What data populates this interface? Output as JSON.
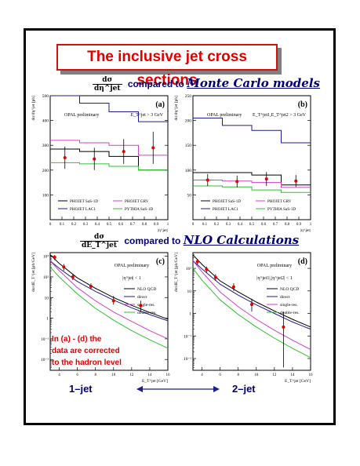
{
  "title": "The inclusive jet cross sections",
  "section_top": {
    "numerator": "dσ",
    "denominator": "dη^jet",
    "connector": "compared to",
    "emphasis": "Monte Carlo models"
  },
  "section_bottom": {
    "numerator": "dσ",
    "denominator": "dE_T^jet",
    "connector": "compared to",
    "emphasis": "NLO Calculations"
  },
  "note_lines": [
    "In (a) - (d) the",
    "data are corrected",
    "to the hadron level"
  ],
  "footer": {
    "left": "1–jet",
    "right": "2–jet"
  },
  "colors": {
    "black": "#000000",
    "blue": "#1e1e8c",
    "magenta": "#d040c8",
    "green": "#30c030",
    "data": "#e00000",
    "accent": "#00007a"
  },
  "chart_data": [
    {
      "id": "a",
      "type": "step",
      "panel_label": "(a)",
      "preliminary": "OPAL preliminary",
      "cut": "E_T^jet > 3 GeV",
      "ylabel": "dσ/dη^jet [pb]",
      "xlabel": "|η^jet|",
      "xlim": [
        0,
        1
      ],
      "ylim": [
        0,
        500
      ],
      "yticks": [
        100,
        200,
        300,
        400,
        500
      ],
      "xticks": [
        0,
        0.1,
        0.2,
        0.3,
        0.4,
        0.5,
        0.6,
        0.7,
        0.8,
        0.9,
        1
      ],
      "bin_edges": [
        0,
        0.25,
        0.5,
        0.75,
        1.0
      ],
      "series": [
        {
          "name": "PHOJET SaS-1D",
          "color": "black",
          "values": [
            285,
            275,
            255,
            200
          ]
        },
        {
          "name": "PHOJET LAC1",
          "color": "blue",
          "values": [
            500,
            470,
            435,
            395
          ]
        },
        {
          "name": "PHOJET GRV",
          "color": "magenta",
          "values": [
            320,
            310,
            300,
            260
          ]
        },
        {
          "name": "PYTHIA SaS-1D",
          "color": "green",
          "values": [
            230,
            225,
            215,
            200
          ]
        }
      ],
      "data_points": [
        {
          "x": 0.125,
          "y": 250,
          "err": 45
        },
        {
          "x": 0.375,
          "y": 245,
          "err": 45
        },
        {
          "x": 0.625,
          "y": 275,
          "err": 50
        },
        {
          "x": 0.875,
          "y": 290,
          "err": 65
        }
      ]
    },
    {
      "id": "b",
      "type": "step",
      "panel_label": "(b)",
      "preliminary": "OPAL preliminary",
      "cut": "E_T^jet1,E_T^jet2 > 3 GeV",
      "ylabel": "dσ/dη^jet [pb]",
      "xlabel": "|η^jet|",
      "xlim": [
        0,
        1
      ],
      "ylim": [
        0,
        250
      ],
      "yticks": [
        50,
        100,
        150,
        200,
        250
      ],
      "xticks": [
        0,
        0.1,
        0.2,
        0.3,
        0.4,
        0.5,
        0.6,
        0.7,
        0.8,
        0.9,
        1
      ],
      "bin_edges": [
        0,
        0.25,
        0.5,
        0.75,
        1.0
      ],
      "series": [
        {
          "name": "PHOJET SaS-1D",
          "color": "black",
          "values": [
            95,
            95,
            90,
            70
          ]
        },
        {
          "name": "PHOJET LAC1",
          "color": "blue",
          "values": [
            205,
            190,
            180,
            155
          ]
        },
        {
          "name": "PHOJET GRV",
          "color": "magenta",
          "values": [
            80,
            78,
            75,
            65
          ]
        },
        {
          "name": "PYTHIA SaS-1D",
          "color": "green",
          "values": [
            68,
            66,
            60,
            55
          ]
        }
      ],
      "data_points": [
        {
          "x": 0.125,
          "y": 80,
          "err": 12
        },
        {
          "x": 0.375,
          "y": 77,
          "err": 12
        },
        {
          "x": 0.625,
          "y": 82,
          "err": 14
        },
        {
          "x": 0.875,
          "y": 78,
          "err": 12
        }
      ]
    },
    {
      "id": "c",
      "type": "line",
      "log_y": true,
      "panel_label": "(c)",
      "preliminary": "OPAL preliminary",
      "cut": "|η^jet| < 1",
      "ylabel": "dσ/dE_T^jet [pb/GeV]",
      "xlabel": "E_T^jet [GeV]",
      "xlim": [
        3,
        16
      ],
      "ylim": [
        0.003,
        1500
      ],
      "yticks": [
        0.01,
        0.1,
        1,
        10,
        100,
        1000
      ],
      "ytick_labels": [
        "10⁻²",
        "10⁻¹",
        "1",
        "10",
        "10²",
        "10³"
      ],
      "xticks": [
        4,
        6,
        8,
        10,
        12,
        14,
        16
      ],
      "xtick_labels": [
        "4",
        "6",
        "8",
        "10",
        "12",
        "14",
        "16"
      ],
      "series": [
        {
          "name": "NLO QCD",
          "color": "black",
          "x": [
            3,
            4,
            6,
            8,
            10,
            12,
            14,
            16
          ],
          "y": [
            1200,
            450,
            90,
            28,
            10,
            4.2,
            1.9,
            0.9
          ]
        },
        {
          "name": "direct",
          "color": "blue",
          "x": [
            3,
            4,
            6,
            8,
            10,
            12,
            14,
            16
          ],
          "y": [
            600,
            260,
            60,
            20,
            7.5,
            3.2,
            1.5,
            0.75
          ]
        },
        {
          "name": "single-res.",
          "color": "magenta",
          "x": [
            3,
            4,
            6,
            8,
            10,
            12,
            14,
            16
          ],
          "y": [
            600,
            200,
            30,
            7,
            2,
            0.7,
            0.25,
            0.1
          ]
        },
        {
          "name": "double-res.",
          "color": "green",
          "x": [
            3,
            4,
            6,
            8,
            10,
            12,
            14,
            16
          ],
          "y": [
            300,
            100,
            15,
            3,
            0.8,
            0.25,
            0.09,
            0.035
          ]
        }
      ],
      "data_points": [
        {
          "x": 3.5,
          "y": 900,
          "lo": 650,
          "hi": 1150
        },
        {
          "x": 4.5,
          "y": 300,
          "lo": 200,
          "hi": 420
        },
        {
          "x": 5.5,
          "y": 100,
          "lo": 70,
          "hi": 140
        },
        {
          "x": 7.5,
          "y": 35,
          "lo": 25,
          "hi": 48
        },
        {
          "x": 10,
          "y": 7,
          "lo": 4.5,
          "hi": 12
        },
        {
          "x": 13,
          "y": 4,
          "lo": 2,
          "hi": 7
        }
      ]
    },
    {
      "id": "d",
      "type": "line",
      "log_y": true,
      "panel_label": "(d)",
      "preliminary": "OPAL preliminary",
      "cut": "|η^jet1|,|η^jet2| < 1",
      "ylabel": "dσ/dE_T^jet [pb/GeV]",
      "xlabel": "E_T^jet [GeV]",
      "xlim": [
        3,
        16
      ],
      "ylim": [
        0.003,
        500
      ],
      "yticks": [
        0.01,
        0.1,
        1,
        10,
        100
      ],
      "ytick_labels": [
        "10⁻²",
        "10⁻¹",
        "1",
        "10",
        "10²"
      ],
      "xticks": [
        4,
        6,
        8,
        10,
        12,
        14,
        16
      ],
      "xtick_labels": [
        "4",
        "6",
        "8",
        "10",
        "12",
        "14",
        "16"
      ],
      "series": [
        {
          "name": "NLO QCD",
          "color": "black",
          "x": [
            3,
            4,
            6,
            8,
            10,
            12,
            14,
            16
          ],
          "y": [
            400,
            150,
            28,
            9,
            3.2,
            1.3,
            0.55,
            0.25
          ]
        },
        {
          "name": "direct",
          "color": "blue",
          "x": [
            3,
            4,
            6,
            8,
            10,
            12,
            14,
            16
          ],
          "y": [
            220,
            95,
            20,
            6.5,
            2.4,
            1.0,
            0.42,
            0.2
          ]
        },
        {
          "name": "single-res.",
          "color": "magenta",
          "x": [
            3,
            4,
            6,
            8,
            10,
            12,
            14,
            16
          ],
          "y": [
            220,
            70,
            9,
            2.0,
            0.55,
            0.18,
            0.065,
            0.025
          ]
        },
        {
          "name": "double-res.",
          "color": "green",
          "x": [
            3,
            4,
            6,
            8,
            10,
            12,
            14,
            16
          ],
          "y": [
            100,
            30,
            4,
            0.9,
            0.25,
            0.08,
            0.028,
            0.011
          ]
        }
      ],
      "data_points": [
        {
          "x": 3.5,
          "y": 200,
          "lo": 150,
          "hi": 260
        },
        {
          "x": 4.5,
          "y": 90,
          "lo": 65,
          "hi": 120
        },
        {
          "x": 5.5,
          "y": 40,
          "lo": 28,
          "hi": 55
        },
        {
          "x": 7.5,
          "y": 15,
          "lo": 10,
          "hi": 22
        },
        {
          "x": 9.5,
          "y": 2.5,
          "lo": 1.2,
          "hi": 4.5
        },
        {
          "x": 13,
          "y": 0.25,
          "lo": 0.004,
          "hi": 1.2
        }
      ]
    }
  ]
}
